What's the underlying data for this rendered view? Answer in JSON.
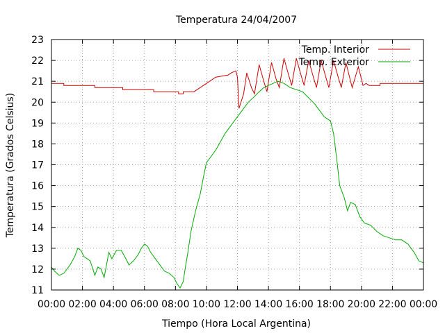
{
  "chart_data": {
    "type": "line",
    "title": "Temperatura 24/04/2007",
    "xlabel": "Tiempo (Hora Local Argentina)",
    "ylabel": "Temperatura (Grados Celsius)",
    "xlim": [
      0,
      24
    ],
    "ylim": [
      11,
      23
    ],
    "x_tick_labels": [
      "00:00",
      "02:00",
      "04:00",
      "06:00",
      "08:00",
      "10:00",
      "12:00",
      "14:00",
      "16:00",
      "18:00",
      "20:00",
      "22:00",
      "00:00"
    ],
    "y_tick_labels": [
      "11",
      "12",
      "13",
      "14",
      "15",
      "16",
      "17",
      "18",
      "19",
      "20",
      "21",
      "22",
      "23"
    ],
    "grid": true,
    "legend_position": "top-right",
    "series": [
      {
        "name": "Temp. Interior",
        "color": "#cc0000",
        "points": [
          [
            0,
            20.9
          ],
          [
            0.8,
            20.9
          ],
          [
            0.8,
            20.8
          ],
          [
            2.8,
            20.8
          ],
          [
            2.8,
            20.7
          ],
          [
            4.6,
            20.7
          ],
          [
            4.6,
            20.6
          ],
          [
            6.6,
            20.6
          ],
          [
            6.6,
            20.5
          ],
          [
            8.2,
            20.5
          ],
          [
            8.2,
            20.4
          ],
          [
            8.5,
            20.4
          ],
          [
            8.5,
            20.5
          ],
          [
            9.2,
            20.5
          ],
          [
            9.4,
            20.6
          ],
          [
            9.6,
            20.7
          ],
          [
            9.8,
            20.8
          ],
          [
            10.0,
            20.9
          ],
          [
            10.2,
            21.0
          ],
          [
            10.6,
            21.2
          ],
          [
            11.4,
            21.3
          ],
          [
            11.6,
            21.4
          ],
          [
            11.9,
            21.5
          ],
          [
            12.0,
            21.2
          ],
          [
            12.1,
            19.7
          ],
          [
            12.4,
            20.4
          ],
          [
            12.6,
            21.4
          ],
          [
            12.9,
            20.7
          ],
          [
            13.1,
            20.4
          ],
          [
            13.4,
            21.8
          ],
          [
            13.7,
            21.0
          ],
          [
            13.9,
            20.5
          ],
          [
            14.2,
            21.9
          ],
          [
            14.5,
            21.1
          ],
          [
            14.7,
            20.7
          ],
          [
            15.0,
            22.1
          ],
          [
            15.3,
            21.3
          ],
          [
            15.5,
            20.8
          ],
          [
            15.8,
            22.1
          ],
          [
            16.1,
            21.3
          ],
          [
            16.3,
            20.8
          ],
          [
            16.6,
            22.0
          ],
          [
            16.9,
            21.2
          ],
          [
            17.1,
            20.7
          ],
          [
            17.4,
            22.0
          ],
          [
            17.7,
            21.2
          ],
          [
            17.9,
            20.7
          ],
          [
            18.2,
            22.0
          ],
          [
            18.5,
            21.2
          ],
          [
            18.7,
            20.7
          ],
          [
            19.0,
            21.9
          ],
          [
            19.4,
            20.7
          ],
          [
            19.8,
            21.7
          ],
          [
            20.1,
            20.8
          ],
          [
            20.3,
            20.9
          ],
          [
            20.5,
            20.8
          ],
          [
            21.2,
            20.8
          ],
          [
            21.2,
            20.9
          ],
          [
            24,
            20.9
          ]
        ]
      },
      {
        "name": "Temp. Exterior",
        "color": "#00aa00",
        "points": [
          [
            0,
            12.1
          ],
          [
            0.2,
            11.9
          ],
          [
            0.5,
            11.7
          ],
          [
            0.8,
            11.8
          ],
          [
            1.2,
            12.2
          ],
          [
            1.5,
            12.6
          ],
          [
            1.7,
            13.0
          ],
          [
            1.9,
            12.9
          ],
          [
            2.1,
            12.6
          ],
          [
            2.5,
            12.4
          ],
          [
            2.8,
            11.7
          ],
          [
            3.0,
            12.1
          ],
          [
            3.2,
            12.0
          ],
          [
            3.4,
            11.6
          ],
          [
            3.6,
            12.4
          ],
          [
            3.7,
            12.8
          ],
          [
            3.9,
            12.5
          ],
          [
            4.2,
            12.9
          ],
          [
            4.5,
            12.9
          ],
          [
            4.8,
            12.5
          ],
          [
            5.0,
            12.2
          ],
          [
            5.3,
            12.4
          ],
          [
            5.6,
            12.7
          ],
          [
            5.8,
            13.0
          ],
          [
            6.0,
            13.2
          ],
          [
            6.2,
            13.1
          ],
          [
            6.4,
            12.8
          ],
          [
            6.7,
            12.5
          ],
          [
            7.0,
            12.2
          ],
          [
            7.3,
            11.9
          ],
          [
            7.6,
            11.8
          ],
          [
            7.9,
            11.6
          ],
          [
            8.1,
            11.3
          ],
          [
            8.3,
            11.1
          ],
          [
            8.5,
            11.4
          ],
          [
            8.6,
            11.9
          ],
          [
            8.8,
            12.8
          ],
          [
            9.0,
            13.8
          ],
          [
            9.3,
            14.8
          ],
          [
            9.6,
            15.6
          ],
          [
            9.8,
            16.4
          ],
          [
            10.0,
            17.1
          ],
          [
            10.3,
            17.4
          ],
          [
            10.6,
            17.7
          ],
          [
            10.9,
            18.1
          ],
          [
            11.2,
            18.5
          ],
          [
            11.5,
            18.8
          ],
          [
            11.8,
            19.1
          ],
          [
            12.1,
            19.4
          ],
          [
            12.4,
            19.7
          ],
          [
            12.7,
            20.0
          ],
          [
            13.0,
            20.2
          ],
          [
            13.4,
            20.5
          ],
          [
            13.7,
            20.7
          ],
          [
            14.0,
            20.8
          ],
          [
            14.3,
            20.9
          ],
          [
            14.6,
            21.0
          ],
          [
            15.0,
            20.9
          ],
          [
            15.4,
            20.7
          ],
          [
            15.8,
            20.6
          ],
          [
            16.2,
            20.5
          ],
          [
            16.6,
            20.2
          ],
          [
            17.0,
            19.9
          ],
          [
            17.3,
            19.6
          ],
          [
            17.6,
            19.3
          ],
          [
            18.0,
            19.1
          ],
          [
            18.2,
            18.5
          ],
          [
            18.4,
            17.3
          ],
          [
            18.6,
            16.0
          ],
          [
            18.9,
            15.4
          ],
          [
            19.1,
            14.8
          ],
          [
            19.3,
            15.2
          ],
          [
            19.6,
            15.1
          ],
          [
            19.9,
            14.5
          ],
          [
            20.2,
            14.2
          ],
          [
            20.6,
            14.1
          ],
          [
            21.0,
            13.8
          ],
          [
            21.4,
            13.6
          ],
          [
            21.8,
            13.5
          ],
          [
            22.2,
            13.4
          ],
          [
            22.6,
            13.4
          ],
          [
            23.0,
            13.2
          ],
          [
            23.4,
            12.8
          ],
          [
            23.7,
            12.4
          ],
          [
            24,
            12.3
          ]
        ]
      }
    ]
  }
}
